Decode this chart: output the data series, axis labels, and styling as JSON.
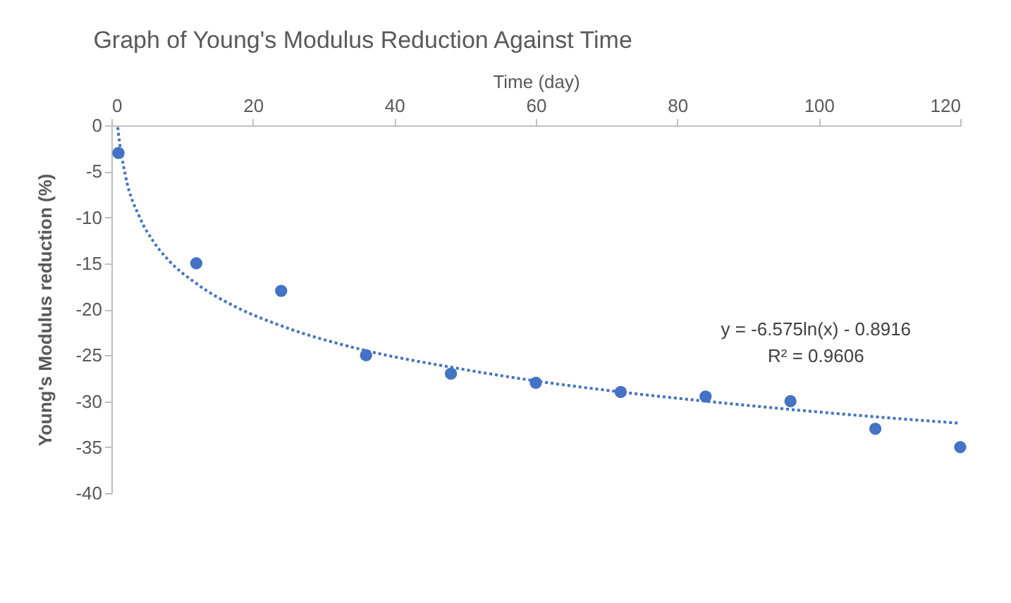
{
  "chart_data": {
    "type": "scatter",
    "title": "Graph of Young's Modulus Reduction Against Time",
    "xlabel": "Time (day)",
    "ylabel": "Young's Modulus reduction (%)",
    "x": [
      1,
      12,
      24,
      36,
      48,
      60,
      72,
      84,
      96,
      108,
      120
    ],
    "series": [
      {
        "color": "#4472c4",
        "marker": "circle",
        "values": [
          -3,
          -15,
          -18,
          -25,
          -27,
          -28,
          -29,
          -29.5,
          -30,
          -33,
          -35
        ]
      },
      {
        "type": "line",
        "color": "#4472c4",
        "line_style": "dotted",
        "marker": "none",
        "x": [
          0.9,
          1,
          2,
          4,
          6,
          8,
          12,
          18,
          24,
          36,
          48,
          60,
          72,
          84,
          96,
          108,
          120
        ],
        "values": [
          -0.2,
          -0.9,
          -5.5,
          -10.0,
          -12.7,
          -14.6,
          -17.2,
          -19.9,
          -21.8,
          -24.5,
          -26.3,
          -27.8,
          -29.0,
          -30.0,
          -30.9,
          -31.7,
          -32.4
        ]
      }
    ],
    "xlim": [
      0,
      120
    ],
    "xticks": [
      0,
      20,
      40,
      60,
      80,
      100,
      120
    ],
    "ylim": [
      -40,
      0
    ],
    "yticks": [
      -40,
      -35,
      -30,
      -25,
      -20,
      -15,
      -10,
      -5,
      0
    ],
    "annotations": [
      "y = -6.575ln(x) - 0.8916",
      "R² = 0.9606"
    ]
  }
}
